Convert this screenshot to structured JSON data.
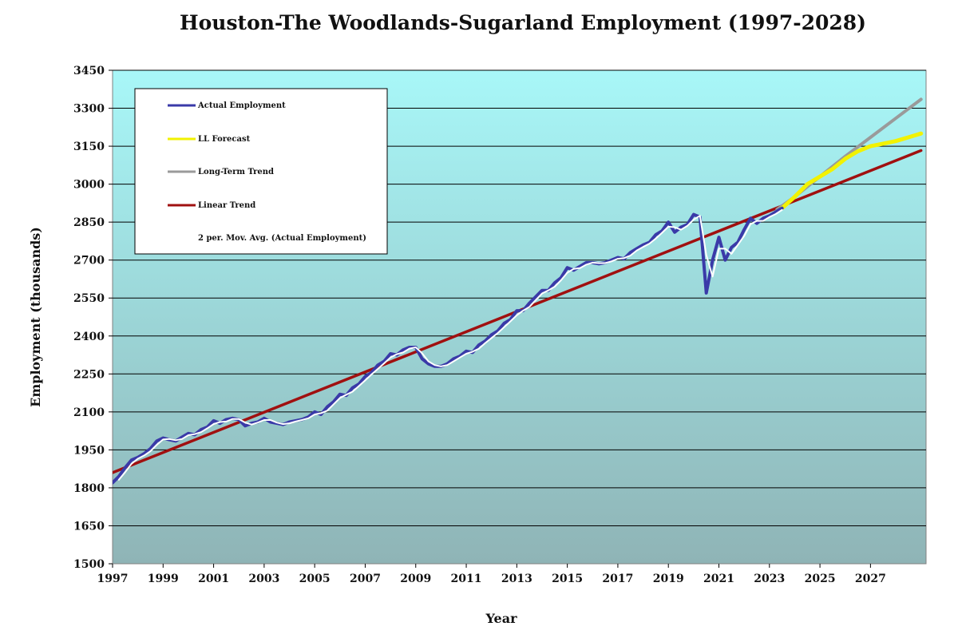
{
  "chart_data": {
    "type": "line",
    "title": "Houston-The Woodlands-Sugarland Employment (1997-2028)",
    "xlabel": "Year",
    "ylabel": "Employment (thousands)",
    "xlim": [
      1997,
      2029.2
    ],
    "ylim": [
      1500,
      3450
    ],
    "x_ticks": [
      1997,
      1999,
      2001,
      2003,
      2005,
      2007,
      2009,
      2011,
      2013,
      2015,
      2017,
      2019,
      2021,
      2023,
      2025,
      2027
    ],
    "y_ticks": [
      1500,
      1650,
      1800,
      1950,
      2100,
      2250,
      2400,
      2550,
      2700,
      2850,
      3000,
      3150,
      3300,
      3450
    ],
    "grid": "horizontal",
    "legend_position": "top-left",
    "series": [
      {
        "name": "Actual Employment",
        "color": "#3a3aa8",
        "points": [
          [
            1997.0,
            1820
          ],
          [
            1997.25,
            1845
          ],
          [
            1997.5,
            1880
          ],
          [
            1997.75,
            1910
          ],
          [
            1998.0,
            1920
          ],
          [
            1998.25,
            1935
          ],
          [
            1998.5,
            1955
          ],
          [
            1998.75,
            1985
          ],
          [
            1999.0,
            1997
          ],
          [
            1999.25,
            1990
          ],
          [
            1999.5,
            1985
          ],
          [
            1999.75,
            2000
          ],
          [
            2000.0,
            2015
          ],
          [
            2000.25,
            2010
          ],
          [
            2000.5,
            2030
          ],
          [
            2000.75,
            2040
          ],
          [
            2001.0,
            2065
          ],
          [
            2001.25,
            2055
          ],
          [
            2001.5,
            2070
          ],
          [
            2001.75,
            2075
          ],
          [
            2002.0,
            2070
          ],
          [
            2002.25,
            2045
          ],
          [
            2002.5,
            2055
          ],
          [
            2002.75,
            2060
          ],
          [
            2003.0,
            2075
          ],
          [
            2003.25,
            2060
          ],
          [
            2003.5,
            2055
          ],
          [
            2003.75,
            2050
          ],
          [
            2004.0,
            2060
          ],
          [
            2004.25,
            2065
          ],
          [
            2004.5,
            2070
          ],
          [
            2004.75,
            2080
          ],
          [
            2005.0,
            2100
          ],
          [
            2005.25,
            2090
          ],
          [
            2005.5,
            2120
          ],
          [
            2005.75,
            2140
          ],
          [
            2006.0,
            2170
          ],
          [
            2006.25,
            2165
          ],
          [
            2006.5,
            2195
          ],
          [
            2006.75,
            2210
          ],
          [
            2007.0,
            2240
          ],
          [
            2007.25,
            2255
          ],
          [
            2007.5,
            2285
          ],
          [
            2007.75,
            2300
          ],
          [
            2008.0,
            2330
          ],
          [
            2008.25,
            2325
          ],
          [
            2008.5,
            2345
          ],
          [
            2008.75,
            2355
          ],
          [
            2009.0,
            2355
          ],
          [
            2009.25,
            2310
          ],
          [
            2009.5,
            2290
          ],
          [
            2009.75,
            2280
          ],
          [
            2010.0,
            2280
          ],
          [
            2010.25,
            2290
          ],
          [
            2010.5,
            2310
          ],
          [
            2010.75,
            2320
          ],
          [
            2011.0,
            2340
          ],
          [
            2011.25,
            2335
          ],
          [
            2011.5,
            2365
          ],
          [
            2011.75,
            2380
          ],
          [
            2012.0,
            2405
          ],
          [
            2012.25,
            2420
          ],
          [
            2012.5,
            2450
          ],
          [
            2012.75,
            2465
          ],
          [
            2013.0,
            2500
          ],
          [
            2013.25,
            2500
          ],
          [
            2013.5,
            2530
          ],
          [
            2013.75,
            2555
          ],
          [
            2014.0,
            2580
          ],
          [
            2014.25,
            2580
          ],
          [
            2014.5,
            2610
          ],
          [
            2014.75,
            2630
          ],
          [
            2015.0,
            2670
          ],
          [
            2015.25,
            2660
          ],
          [
            2015.5,
            2675
          ],
          [
            2015.75,
            2690
          ],
          [
            2016.0,
            2690
          ],
          [
            2016.25,
            2685
          ],
          [
            2016.5,
            2690
          ],
          [
            2016.75,
            2700
          ],
          [
            2017.0,
            2710
          ],
          [
            2017.25,
            2705
          ],
          [
            2017.5,
            2730
          ],
          [
            2017.75,
            2745
          ],
          [
            2018.0,
            2760
          ],
          [
            2018.25,
            2770
          ],
          [
            2018.5,
            2800
          ],
          [
            2018.75,
            2815
          ],
          [
            2019.0,
            2850
          ],
          [
            2019.25,
            2810
          ],
          [
            2019.5,
            2830
          ],
          [
            2019.75,
            2840
          ],
          [
            2020.0,
            2880
          ],
          [
            2020.25,
            2870
          ],
          [
            2020.5,
            2570
          ],
          [
            2020.75,
            2700
          ],
          [
            2021.0,
            2790
          ],
          [
            2021.25,
            2700
          ],
          [
            2021.5,
            2750
          ],
          [
            2021.75,
            2770
          ],
          [
            2022.0,
            2820
          ],
          [
            2022.25,
            2865
          ],
          [
            2022.5,
            2845
          ],
          [
            2022.75,
            2865
          ],
          [
            2023.0,
            2875
          ],
          [
            2023.25,
            2890
          ],
          [
            2023.5,
            2905
          ]
        ]
      },
      {
        "name": "LL Forecast",
        "color": "#f2f200",
        "points": [
          [
            2023.5,
            2905
          ],
          [
            2024.0,
            2950
          ],
          [
            2024.5,
            3000
          ],
          [
            2025.0,
            3030
          ],
          [
            2025.5,
            3060
          ],
          [
            2026.0,
            3100
          ],
          [
            2026.5,
            3130
          ],
          [
            2027.0,
            3150
          ],
          [
            2027.5,
            3160
          ],
          [
            2028.0,
            3170
          ],
          [
            2028.5,
            3185
          ],
          [
            2029.0,
            3200
          ]
        ]
      },
      {
        "name": "Long-Term Trend",
        "color": "#9a9a9a",
        "points": [
          [
            2023.3,
            2900
          ],
          [
            2024.0,
            2950
          ],
          [
            2025.0,
            3030
          ],
          [
            2026.0,
            3110
          ],
          [
            2027.0,
            3185
          ],
          [
            2028.0,
            3260
          ],
          [
            2029.0,
            3335
          ]
        ]
      },
      {
        "name": "Linear Trend",
        "color": "#a01010",
        "points": [
          [
            1997.0,
            1860
          ],
          [
            2029.0,
            3133
          ]
        ]
      },
      {
        "name": "2 per. Mov. Avg. (Actual Employment)",
        "color": "#ffffff",
        "points": [
          [
            1997.25,
            1832
          ],
          [
            1997.5,
            1862
          ],
          [
            1997.75,
            1895
          ],
          [
            1998.0,
            1915
          ],
          [
            1998.25,
            1928
          ],
          [
            1998.5,
            1945
          ],
          [
            1998.75,
            1970
          ],
          [
            1999.0,
            1991
          ],
          [
            1999.25,
            1993
          ],
          [
            1999.5,
            1988
          ],
          [
            1999.75,
            1993
          ],
          [
            2000.0,
            2008
          ],
          [
            2000.25,
            2012
          ],
          [
            2000.5,
            2020
          ],
          [
            2000.75,
            2035
          ],
          [
            2001.0,
            2052
          ],
          [
            2001.25,
            2060
          ],
          [
            2001.5,
            2062
          ],
          [
            2001.75,
            2072
          ],
          [
            2002.0,
            2072
          ],
          [
            2002.25,
            2058
          ],
          [
            2002.5,
            2050
          ],
          [
            2002.75,
            2058
          ],
          [
            2003.0,
            2068
          ],
          [
            2003.25,
            2068
          ],
          [
            2003.5,
            2058
          ],
          [
            2003.75,
            2052
          ],
          [
            2004.0,
            2055
          ],
          [
            2004.25,
            2062
          ],
          [
            2004.5,
            2068
          ],
          [
            2004.75,
            2075
          ],
          [
            2005.0,
            2090
          ],
          [
            2005.25,
            2095
          ],
          [
            2005.5,
            2105
          ],
          [
            2005.75,
            2130
          ],
          [
            2006.0,
            2155
          ],
          [
            2006.25,
            2168
          ],
          [
            2006.5,
            2180
          ],
          [
            2006.75,
            2202
          ],
          [
            2007.0,
            2225
          ],
          [
            2007.25,
            2248
          ],
          [
            2007.5,
            2270
          ],
          [
            2007.75,
            2292
          ],
          [
            2008.0,
            2315
          ],
          [
            2008.25,
            2328
          ],
          [
            2008.5,
            2335
          ],
          [
            2008.75,
            2350
          ],
          [
            2009.0,
            2355
          ],
          [
            2009.25,
            2332
          ],
          [
            2009.5,
            2300
          ],
          [
            2009.75,
            2285
          ],
          [
            2010.0,
            2280
          ],
          [
            2010.25,
            2285
          ],
          [
            2010.5,
            2300
          ],
          [
            2010.75,
            2315
          ],
          [
            2011.0,
            2330
          ],
          [
            2011.25,
            2338
          ],
          [
            2011.5,
            2350
          ],
          [
            2011.75,
            2372
          ],
          [
            2012.0,
            2392
          ],
          [
            2012.25,
            2412
          ],
          [
            2012.5,
            2435
          ],
          [
            2012.75,
            2458
          ],
          [
            2013.0,
            2482
          ],
          [
            2013.25,
            2500
          ],
          [
            2013.5,
            2515
          ],
          [
            2013.75,
            2542
          ],
          [
            2014.0,
            2568
          ],
          [
            2014.25,
            2580
          ],
          [
            2014.5,
            2595
          ],
          [
            2014.75,
            2620
          ],
          [
            2015.0,
            2650
          ],
          [
            2015.25,
            2665
          ],
          [
            2015.5,
            2668
          ],
          [
            2015.75,
            2682
          ],
          [
            2016.0,
            2690
          ],
          [
            2016.25,
            2688
          ],
          [
            2016.5,
            2688
          ],
          [
            2016.75,
            2695
          ],
          [
            2017.0,
            2705
          ],
          [
            2017.25,
            2708
          ],
          [
            2017.5,
            2718
          ],
          [
            2017.75,
            2738
          ],
          [
            2018.0,
            2752
          ],
          [
            2018.25,
            2765
          ],
          [
            2018.5,
            2785
          ],
          [
            2018.75,
            2808
          ],
          [
            2019.0,
            2832
          ],
          [
            2019.25,
            2830
          ],
          [
            2019.5,
            2820
          ],
          [
            2019.75,
            2835
          ],
          [
            2020.0,
            2860
          ],
          [
            2020.25,
            2875
          ],
          [
            2020.5,
            2720
          ],
          [
            2020.75,
            2635
          ],
          [
            2021.0,
            2745
          ],
          [
            2021.25,
            2745
          ],
          [
            2021.5,
            2725
          ],
          [
            2021.75,
            2760
          ],
          [
            2022.0,
            2795
          ],
          [
            2022.25,
            2842
          ],
          [
            2022.5,
            2855
          ],
          [
            2022.75,
            2855
          ],
          [
            2023.0,
            2870
          ],
          [
            2023.25,
            2882
          ],
          [
            2023.5,
            2898
          ]
        ]
      }
    ]
  }
}
